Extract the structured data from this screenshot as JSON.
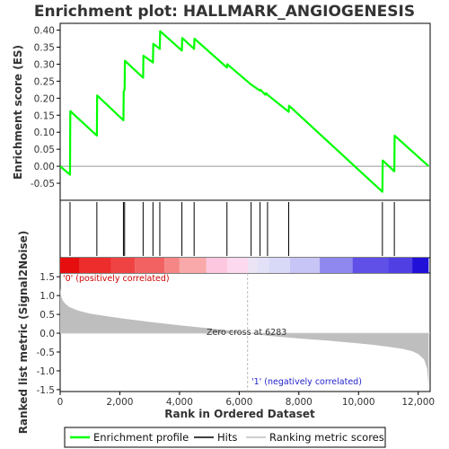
{
  "chart_data": {
    "type": "line",
    "title": "Enrichment plot: HALLMARK_ANGIOGENESIS",
    "xlabel": "Rank in Ordered Dataset",
    "ylabel_top": "Enrichment score (ES)",
    "ylabel_bottom": "Ranked list metric (Signal2Noise)",
    "x_range": [
      0,
      12400
    ],
    "x_ticks": [
      0,
      2000,
      4000,
      6000,
      8000,
      10000,
      12000
    ],
    "x_tick_labels": [
      "0",
      "2,000",
      "4,000",
      "6,000",
      "8,000",
      "10,000",
      "12,000"
    ],
    "es_range": [
      -0.1,
      0.42
    ],
    "es_ticks": [
      -0.05,
      0.0,
      0.05,
      0.1,
      0.15,
      0.2,
      0.25,
      0.3,
      0.35,
      0.4
    ],
    "es_tick_labels": [
      "-0.05",
      "0.00",
      "0.05",
      "0.10",
      "0.15",
      "0.20",
      "0.25",
      "0.30",
      "0.35",
      "0.40"
    ],
    "metric_range": [
      -1.55,
      1.6
    ],
    "metric_ticks": [
      -1.5,
      -1.0,
      -0.5,
      0.0,
      0.5,
      1.0,
      1.5
    ],
    "metric_tick_labels": [
      "-1.5",
      "-1.0",
      "-0.5",
      "0.0",
      "0.5",
      "1.0",
      "1.5"
    ],
    "enrichment_profile": {
      "x": [
        0,
        330,
        340,
        1230,
        1240,
        2120,
        2130,
        2160,
        2170,
        2780,
        2790,
        3110,
        3120,
        3340,
        3350,
        4080,
        4090,
        4490,
        4500,
        5590,
        5600,
        6400,
        6700,
        6710,
        6880,
        6900,
        6950,
        7660,
        7670,
        10800,
        10810,
        11200,
        11210,
        12350
      ],
      "y": [
        0.0,
        -0.025,
        0.162,
        0.09,
        0.208,
        0.135,
        0.22,
        0.225,
        0.31,
        0.26,
        0.325,
        0.305,
        0.36,
        0.345,
        0.397,
        0.34,
        0.377,
        0.345,
        0.375,
        0.29,
        0.3,
        0.24,
        0.222,
        0.225,
        0.21,
        0.215,
        0.21,
        0.16,
        0.178,
        -0.075,
        0.017,
        -0.015,
        0.09,
        0.0
      ]
    },
    "hits": [
      330,
      1230,
      2120,
      2160,
      2780,
      3110,
      3340,
      4080,
      4490,
      5590,
      6400,
      6700,
      6950,
      7660,
      10800,
      11200
    ],
    "ranking_metric": {
      "x": [
        0,
        30,
        80,
        150,
        300,
        600,
        1000,
        2000,
        3000,
        4000,
        5000,
        6000,
        6283,
        7000,
        8000,
        9000,
        10000,
        10500,
        11000,
        11500,
        11800,
        12000,
        12200,
        12300,
        12350
      ],
      "y": [
        1.2,
        1.0,
        0.88,
        0.8,
        0.7,
        0.6,
        0.52,
        0.4,
        0.3,
        0.21,
        0.13,
        0.04,
        0.0,
        -0.07,
        -0.14,
        -0.2,
        -0.27,
        -0.31,
        -0.36,
        -0.42,
        -0.48,
        -0.55,
        -0.7,
        -0.95,
        -1.4
      ]
    },
    "color_bar": [
      {
        "to": 650,
        "color": "#e60e0e"
      },
      {
        "to": 1700,
        "color": "#ed2c2c"
      },
      {
        "to": 2500,
        "color": "#ef4343"
      },
      {
        "to": 3500,
        "color": "#f26262"
      },
      {
        "to": 4000,
        "color": "#f68585"
      },
      {
        "to": 4900,
        "color": "#f9a9a9"
      },
      {
        "to": 5600,
        "color": "#fcc7df"
      },
      {
        "to": 6300,
        "color": "#fcd9ee"
      },
      {
        "to": 6600,
        "color": "#ebe4f5"
      },
      {
        "to": 7000,
        "color": "#e2e1f7"
      },
      {
        "to": 7700,
        "color": "#d8d8f7"
      },
      {
        "to": 8700,
        "color": "#c7c4f6"
      },
      {
        "to": 9800,
        "color": "#8f88ef"
      },
      {
        "to": 11000,
        "color": "#6050e8"
      },
      {
        "to": 11800,
        "color": "#5040e3"
      },
      {
        "to": 12350,
        "color": "#2010d8"
      }
    ],
    "zero_cross_label": "Zero cross at 6283",
    "zero_cross_x": 6283,
    "pos_label": "'0' (positively correlated)",
    "neg_label": "'1' (negatively correlated)",
    "legend": [
      "Enrichment profile",
      "Hits",
      "Ranking metric scores"
    ],
    "colors": {
      "profile": "#00ff00",
      "hits": "#000000",
      "metric_fill": "#bebebe",
      "pos_text": "#cc0000",
      "neg_text": "#2222cc"
    }
  }
}
